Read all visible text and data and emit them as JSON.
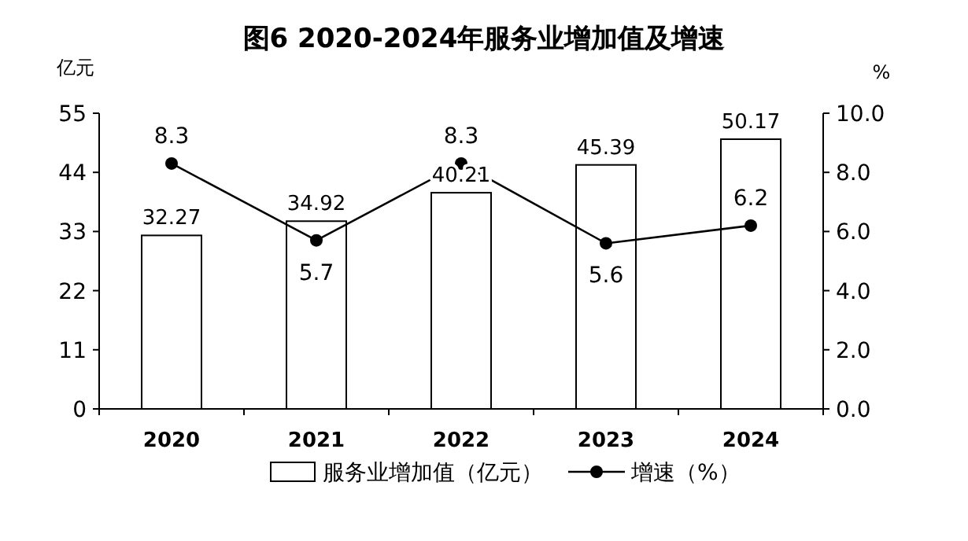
{
  "chart_data": {
    "type": "bar",
    "title": "图6  2020-2024年服务业增加值及增速",
    "ylabel": "亿元",
    "y2label": "%",
    "categories": [
      "2020",
      "2021",
      "2022",
      "2023",
      "2024"
    ],
    "series": [
      {
        "name": "服务业增加值（亿元）",
        "color": "#ffffff",
        "values": [
          32.27,
          34.92,
          40.21,
          45.39,
          50.17
        ]
      },
      {
        "name": "增速（%）",
        "type": "line",
        "axis": "y2",
        "color": "#000000",
        "values": [
          8.3,
          5.7,
          8.3,
          5.6,
          6.2
        ]
      }
    ],
    "ylim": [
      0,
      55
    ],
    "yticks": [
      0,
      11,
      22,
      33,
      44,
      55
    ],
    "y2lim": [
      0,
      10
    ],
    "y2ticks": [
      {
        "value": 0,
        "label": "0.0"
      },
      {
        "value": 2,
        "label": "2.0"
      },
      {
        "value": 4,
        "label": "4.0"
      },
      {
        "value": 6,
        "label": "6.0"
      },
      {
        "value": 8,
        "label": "8.0"
      },
      {
        "value": 10,
        "label": "10.0"
      }
    ],
    "data_labels": true,
    "legend": "bottom",
    "marker": "circle",
    "line_style": "solid",
    "grid": false
  }
}
